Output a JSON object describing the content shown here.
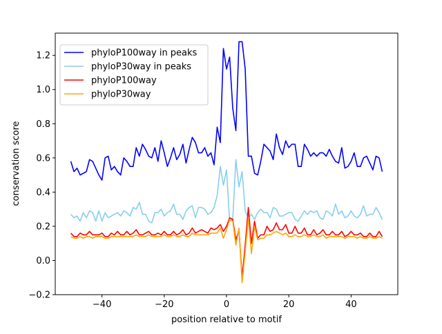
{
  "chart_data": {
    "type": "line",
    "title": "",
    "xlabel": "position relative to motif",
    "ylabel": "conservation score",
    "xlim": [
      -55,
      55
    ],
    "ylim": [
      -0.2,
      1.33
    ],
    "xticks": [
      -40,
      -20,
      0,
      20,
      40
    ],
    "xtick_labels": [
      "−40",
      "−20",
      "0",
      "20",
      "40"
    ],
    "yticks": [
      -0.2,
      0.0,
      0.2,
      0.4,
      0.6,
      0.8,
      1.0,
      1.2
    ],
    "ytick_labels": [
      "−0.2",
      "0.0",
      "0.2",
      "0.4",
      "0.6",
      "0.8",
      "1.0",
      "1.2"
    ],
    "grid": false,
    "legend_placement": "top-left",
    "x_start": -50,
    "x_step": 1,
    "series": [
      {
        "name": "phyloP100way in peaks",
        "color": "#0000ff",
        "values": [
          0.58,
          0.52,
          0.54,
          0.5,
          0.51,
          0.52,
          0.59,
          0.58,
          0.54,
          0.5,
          0.47,
          0.6,
          0.61,
          0.53,
          0.55,
          0.52,
          0.5,
          0.6,
          0.58,
          0.55,
          0.55,
          0.66,
          0.61,
          0.68,
          0.65,
          0.61,
          0.6,
          0.66,
          0.58,
          0.7,
          0.63,
          0.55,
          0.6,
          0.66,
          0.59,
          0.62,
          0.68,
          0.57,
          0.65,
          0.72,
          0.69,
          0.63,
          0.63,
          0.66,
          0.61,
          0.63,
          0.56,
          0.78,
          0.69,
          1.24,
          1.12,
          1.19,
          0.89,
          0.76,
          1.28,
          1.28,
          1.12,
          0.61,
          0.61,
          0.51,
          0.5,
          0.58,
          0.68,
          0.66,
          0.64,
          0.59,
          0.74,
          0.66,
          0.62,
          0.7,
          0.66,
          0.68,
          0.68,
          0.55,
          0.55,
          0.68,
          0.65,
          0.61,
          0.63,
          0.61,
          0.63,
          0.63,
          0.61,
          0.65,
          0.61,
          0.58,
          0.57,
          0.66,
          0.54,
          0.55,
          0.58,
          0.63,
          0.55,
          0.55,
          0.6,
          0.61,
          0.57,
          0.53,
          0.61,
          0.6,
          0.52
        ]
      },
      {
        "name": "phyloP30way in peaks",
        "color": "#87ceeb",
        "values": [
          0.27,
          0.25,
          0.26,
          0.23,
          0.28,
          0.25,
          0.29,
          0.28,
          0.23,
          0.29,
          0.23,
          0.28,
          0.25,
          0.26,
          0.27,
          0.28,
          0.26,
          0.29,
          0.28,
          0.26,
          0.31,
          0.3,
          0.34,
          0.27,
          0.27,
          0.23,
          0.22,
          0.28,
          0.28,
          0.3,
          0.26,
          0.28,
          0.29,
          0.33,
          0.27,
          0.27,
          0.24,
          0.29,
          0.31,
          0.32,
          0.25,
          0.31,
          0.31,
          0.3,
          0.27,
          0.28,
          0.31,
          0.38,
          0.55,
          0.44,
          0.53,
          0.23,
          0.24,
          0.59,
          0.43,
          0.52,
          0.29,
          0.25,
          0.27,
          0.24,
          0.28,
          0.3,
          0.28,
          0.28,
          0.25,
          0.31,
          0.3,
          0.26,
          0.26,
          0.27,
          0.28,
          0.28,
          0.24,
          0.23,
          0.26,
          0.29,
          0.27,
          0.29,
          0.28,
          0.29,
          0.25,
          0.24,
          0.29,
          0.28,
          0.26,
          0.33,
          0.27,
          0.29,
          0.25,
          0.26,
          0.29,
          0.26,
          0.25,
          0.27,
          0.32,
          0.26,
          0.27,
          0.27,
          0.31,
          0.28,
          0.24
        ]
      },
      {
        "name": "phyloP100way",
        "color": "#ff0000",
        "values": [
          0.16,
          0.14,
          0.14,
          0.16,
          0.15,
          0.15,
          0.17,
          0.15,
          0.15,
          0.15,
          0.16,
          0.14,
          0.14,
          0.16,
          0.15,
          0.17,
          0.15,
          0.15,
          0.17,
          0.15,
          0.16,
          0.18,
          0.15,
          0.15,
          0.16,
          0.17,
          0.15,
          0.15,
          0.16,
          0.15,
          0.17,
          0.15,
          0.15,
          0.17,
          0.15,
          0.16,
          0.18,
          0.15,
          0.16,
          0.19,
          0.16,
          0.17,
          0.18,
          0.17,
          0.16,
          0.19,
          0.18,
          0.19,
          0.21,
          0.17,
          0.2,
          0.25,
          0.24,
          0.12,
          0.18,
          -0.1,
          0.09,
          0.31,
          0.1,
          0.23,
          0.13,
          0.15,
          0.15,
          0.2,
          0.17,
          0.18,
          0.22,
          0.18,
          0.18,
          0.21,
          0.16,
          0.16,
          0.2,
          0.16,
          0.16,
          0.19,
          0.15,
          0.15,
          0.18,
          0.15,
          0.16,
          0.18,
          0.15,
          0.15,
          0.17,
          0.15,
          0.15,
          0.17,
          0.14,
          0.15,
          0.17,
          0.15,
          0.15,
          0.16,
          0.14,
          0.14,
          0.16,
          0.14,
          0.14,
          0.17,
          0.14
        ]
      },
      {
        "name": "phyloP30way",
        "color": "#ffa500",
        "values": [
          0.14,
          0.13,
          0.13,
          0.14,
          0.13,
          0.14,
          0.14,
          0.13,
          0.14,
          0.14,
          0.14,
          0.13,
          0.13,
          0.14,
          0.14,
          0.14,
          0.14,
          0.14,
          0.14,
          0.14,
          0.14,
          0.15,
          0.14,
          0.14,
          0.14,
          0.15,
          0.14,
          0.14,
          0.14,
          0.14,
          0.15,
          0.14,
          0.14,
          0.15,
          0.14,
          0.14,
          0.15,
          0.14,
          0.14,
          0.16,
          0.15,
          0.15,
          0.15,
          0.15,
          0.15,
          0.16,
          0.16,
          0.16,
          0.19,
          0.13,
          0.18,
          0.24,
          0.23,
          0.09,
          0.19,
          -0.13,
          0.05,
          0.25,
          0.04,
          0.2,
          0.12,
          0.13,
          0.13,
          0.15,
          0.15,
          0.16,
          0.17,
          0.16,
          0.15,
          0.16,
          0.14,
          0.14,
          0.15,
          0.14,
          0.14,
          0.15,
          0.14,
          0.14,
          0.15,
          0.14,
          0.14,
          0.15,
          0.13,
          0.14,
          0.14,
          0.14,
          0.14,
          0.14,
          0.13,
          0.14,
          0.14,
          0.14,
          0.13,
          0.14,
          0.13,
          0.13,
          0.14,
          0.13,
          0.13,
          0.14,
          0.13
        ]
      }
    ]
  }
}
